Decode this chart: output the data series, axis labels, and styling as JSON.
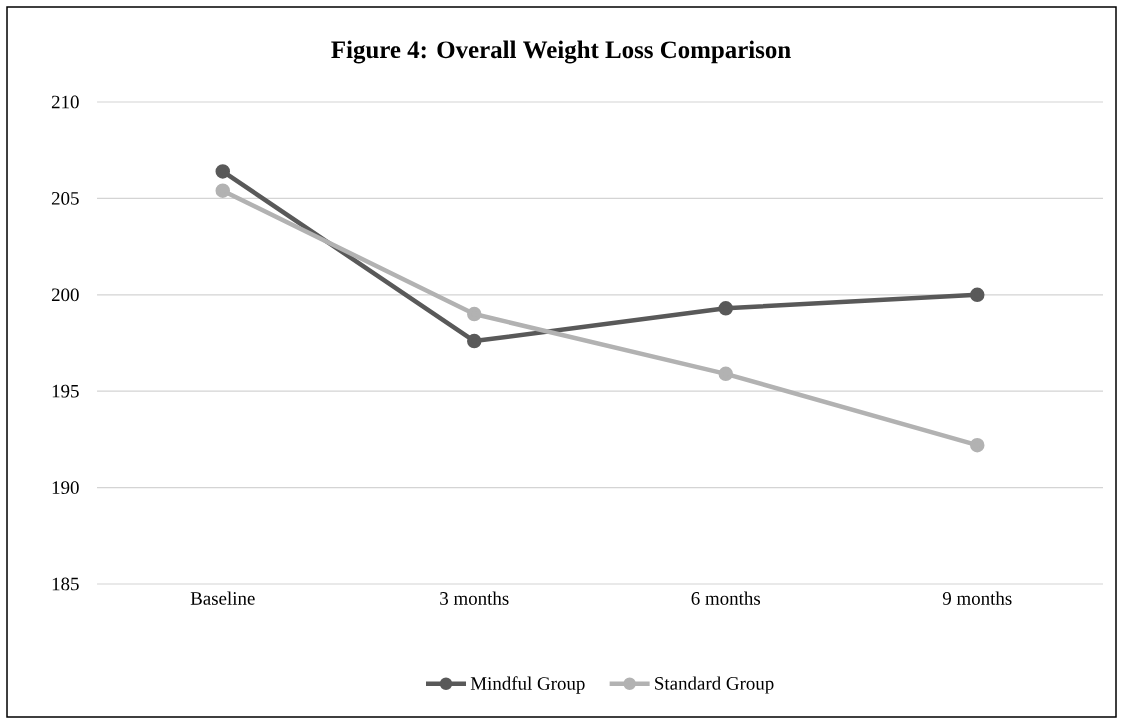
{
  "chart_data": {
    "type": "line",
    "title": "Figure 4: Overall Weight Loss Comparison",
    "categories": [
      "Baseline",
      "3 months",
      "6 months",
      "9 months"
    ],
    "series": [
      {
        "name": "Mindful Group",
        "color": "#595959",
        "values": [
          206.4,
          197.6,
          199.3,
          200.0
        ]
      },
      {
        "name": "Standard Group",
        "color": "#b2b2b2",
        "values": [
          205.4,
          199.0,
          195.9,
          192.2
        ]
      }
    ],
    "ylim": [
      185,
      210
    ],
    "yticks": [
      185,
      190,
      195,
      200,
      205,
      210
    ],
    "grid": "y",
    "legend": "bottom",
    "marker": "circle",
    "line_style": "solid"
  }
}
